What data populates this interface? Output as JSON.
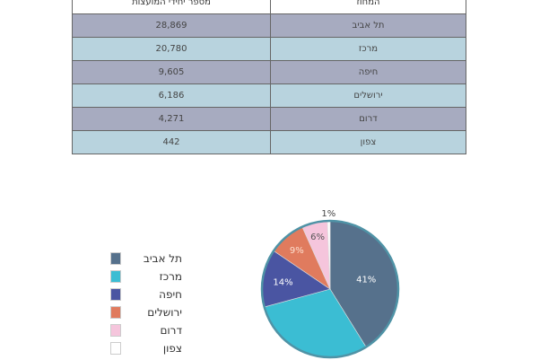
{
  "table": {
    "headers": [
      "מספר יחידי המועצות",
      "המחוז"
    ],
    "rows": [
      [
        "28,869",
        "תל אביב"
      ],
      [
        "20,780",
        "מרכז"
      ],
      [
        "9,605",
        "חיפה"
      ],
      [
        "6,186",
        "ירושלים"
      ],
      [
        "4,271",
        "דרום"
      ],
      [
        "442",
        "צפון"
      ]
    ]
  },
  "chart_data": {
    "type": "pie",
    "categories": [
      "תל אביב",
      "מרכז",
      "חיפה",
      "ירושלים",
      "דרום",
      "צפון"
    ],
    "values": [
      28869,
      20780,
      9605,
      6186,
      4271,
      442
    ],
    "labels": [
      "41%",
      "",
      "14%",
      "9%",
      "6%",
      "1%"
    ],
    "colors": [
      "#56718c",
      "#3bbdd3",
      "#4a55a2",
      "#e07b5e",
      "#f5c5dc",
      "#ffffff"
    ],
    "border_color": "#4f93a6",
    "legend": "left"
  }
}
